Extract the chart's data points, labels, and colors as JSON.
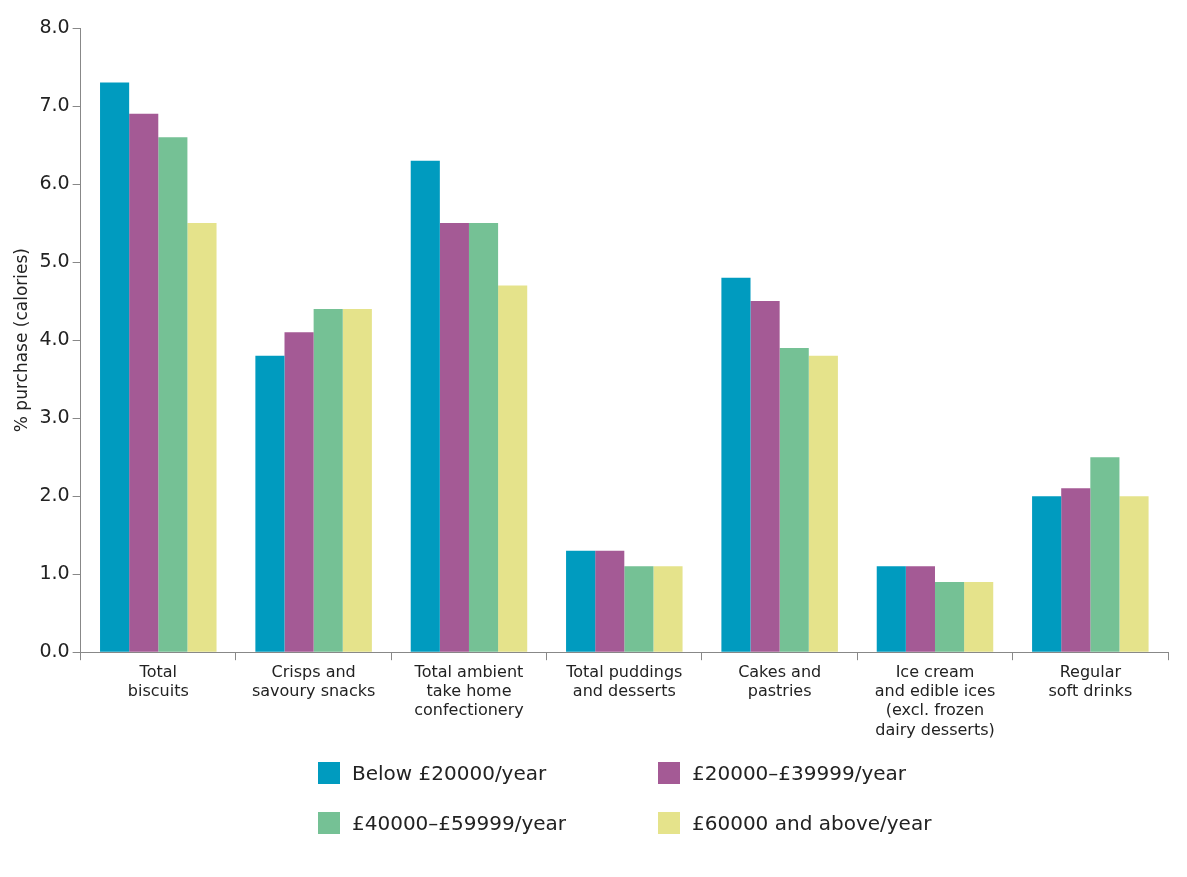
{
  "chart_data": {
    "type": "bar",
    "ylabel": "% purchase (calories)",
    "categories": [
      "Total\nbiscuits",
      "Crisps and\nsavoury snacks",
      "Total ambient\ntake home\nconfectionery",
      "Total puddings\nand desserts",
      "Cakes and\npastries",
      "Ice cream\nand edible ices\n(excl. frozen\ndairy desserts)",
      "Regular\nsoft drinks"
    ],
    "series": [
      {
        "name": "Below £20000/year",
        "color": "#009bbf",
        "values": [
          7.3,
          3.8,
          6.3,
          1.3,
          4.8,
          1.1,
          2.0
        ]
      },
      {
        "name": "£20000–£39999/year",
        "color": "#a45a95",
        "values": [
          6.9,
          4.1,
          5.5,
          1.3,
          4.5,
          1.1,
          2.1
        ]
      },
      {
        "name": "£40000–£59999/year",
        "color": "#75c195",
        "values": [
          6.6,
          4.4,
          5.5,
          1.1,
          3.9,
          0.9,
          2.5
        ]
      },
      {
        "name": "£60000 and above/year",
        "color": "#e5e38b",
        "values": [
          5.5,
          4.4,
          4.7,
          1.1,
          3.8,
          0.9,
          2.0
        ]
      }
    ],
    "ylim": [
      0,
      8
    ],
    "yticks": [
      {
        "value": 0,
        "label": "0.0"
      },
      {
        "value": 1,
        "label": "1.0"
      },
      {
        "value": 2,
        "label": "2.0"
      },
      {
        "value": 3,
        "label": "3.0"
      },
      {
        "value": 4,
        "label": "4.0"
      },
      {
        "value": 5,
        "label": "5.0"
      },
      {
        "value": 6,
        "label": "6.0"
      },
      {
        "value": 7,
        "label": "7.0"
      },
      {
        "value": 8,
        "label": "8.0"
      }
    ],
    "grid": false,
    "legend": "bottom"
  }
}
